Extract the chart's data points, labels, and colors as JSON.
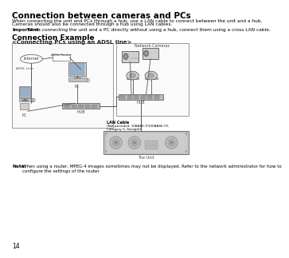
{
  "title": "Connection between cameras and PCs",
  "body_text1": "When connecting the unit and PCs through a hub, use a LAN cable to connect between the unit and a hub.",
  "body_text2": "Cameras should also be connected through a hub using LAN cables.",
  "important_label": "Important:",
  "important_text": "When connecting the unit and a PC directly without using a hub, connect them using a cross LAN cable.",
  "section_title": "Connection Example",
  "subsection_title": "<Connecting PCs using an ADSL line>",
  "note_label": "Note:",
  "note_text1": "When using a router, MPEG-4 images sometimes may not be displayed. Refer to the network administrator for how to",
  "note_text2": "configure the settings of the router.",
  "page_number": "14",
  "bg_color": "#ffffff",
  "text_color": "#000000",
  "label_internet": "Internet",
  "label_adsl_router": "ADSL Router",
  "label_adsl_line": "ADSL Line",
  "label_pc_left": "PC",
  "label_pc_center": "PC",
  "label_hub_left": "HUB",
  "label_hub_right": "HUB",
  "label_network_cameras": "Network Cameras",
  "label_lan_cable": "LAN Cable",
  "label_lan_cable2": "(Not provided: 10BASE-T/100BASE-TX,",
  "label_lan_cable3": "Category 5, Straight)",
  "label_the_unit": "The Unit",
  "line_color": "#555555",
  "box_edge_color": "#999999",
  "hub_color": "#bbbbbb",
  "unit_fill": "#d8d8d8"
}
